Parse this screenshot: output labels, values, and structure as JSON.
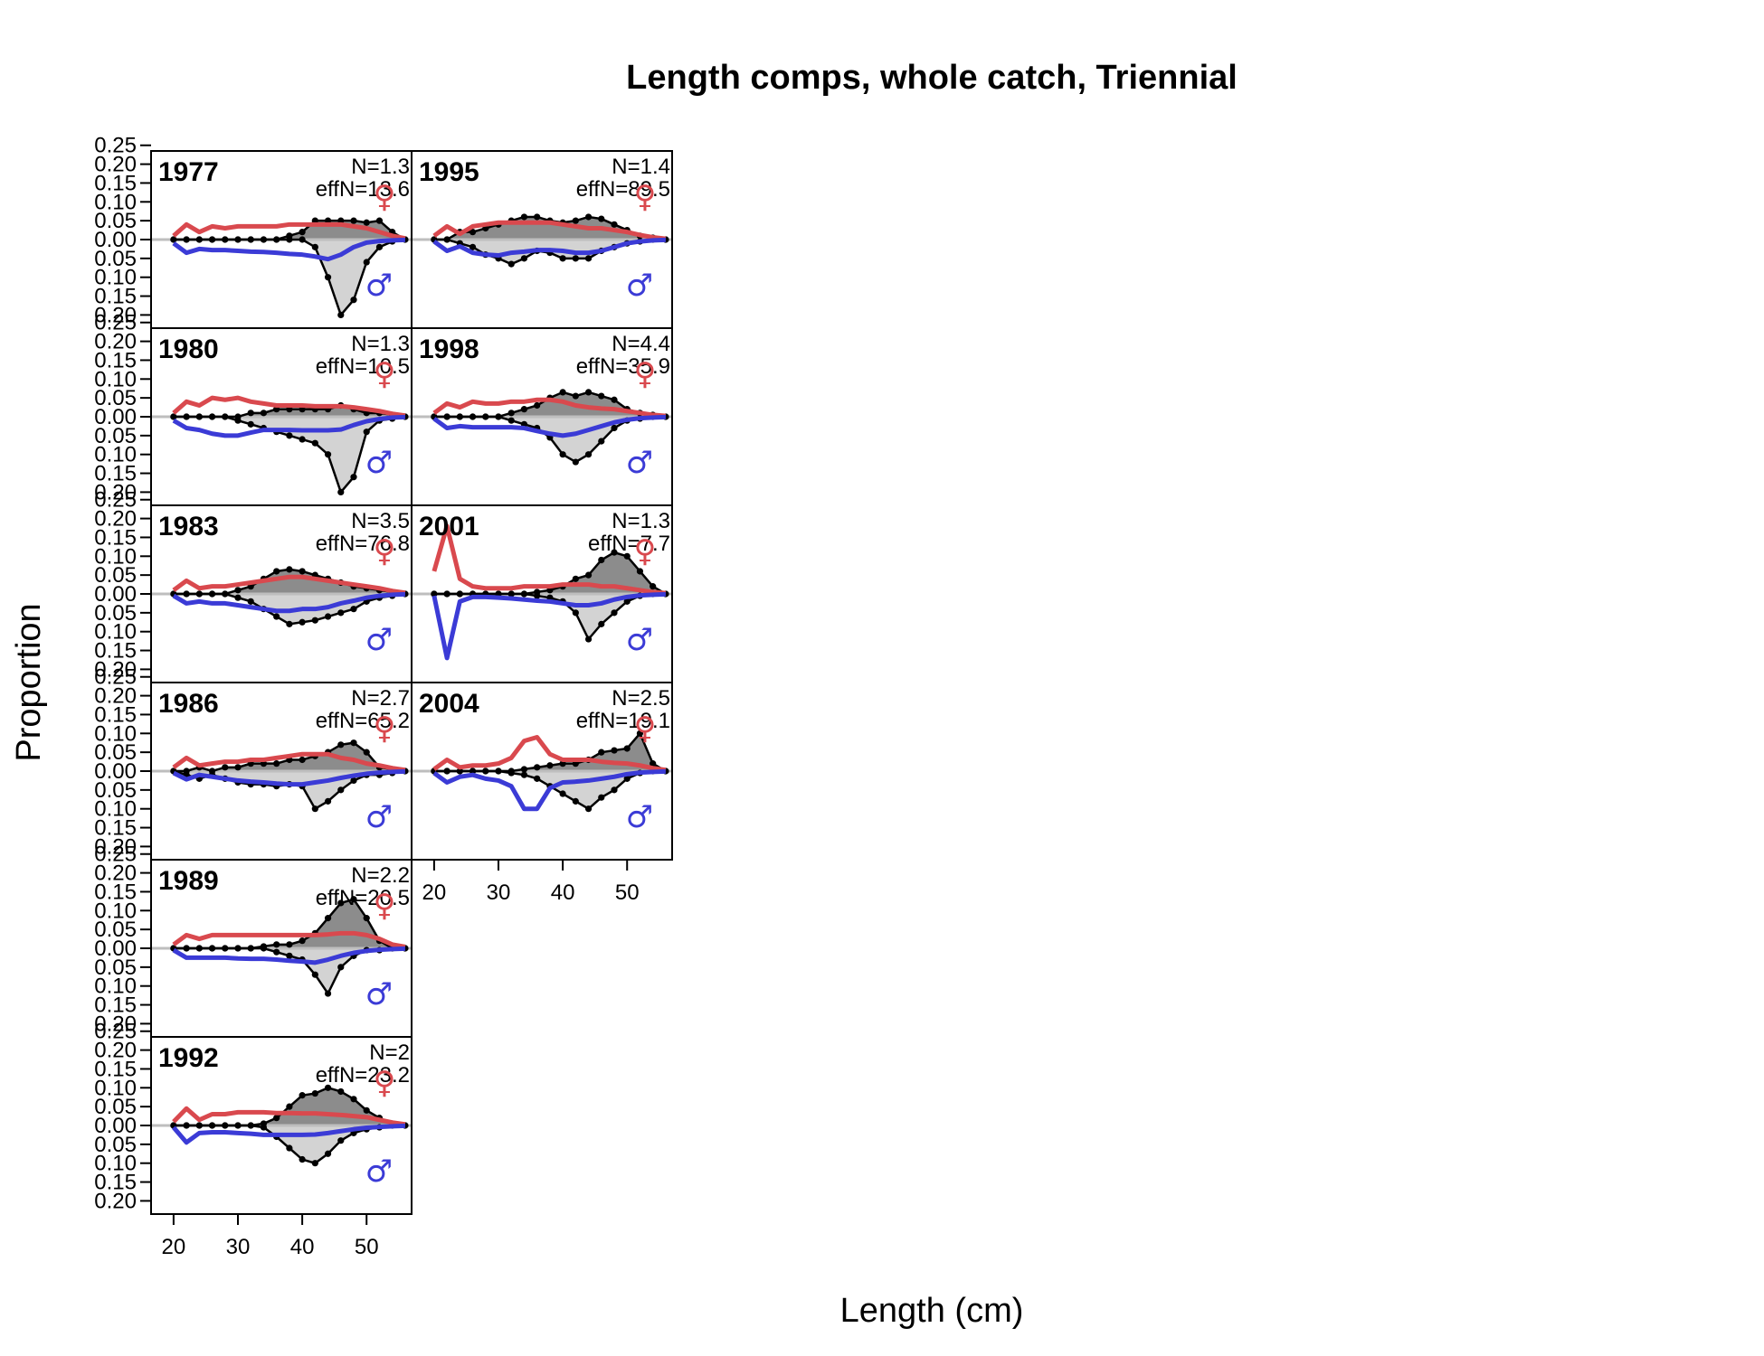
{
  "chart_data": {
    "type": "area",
    "title": "Length comps, whole catch, Triennial",
    "xlabel": "Length (cm)",
    "ylabel": "Proportion",
    "x": [
      20,
      22,
      24,
      26,
      28,
      30,
      32,
      34,
      36,
      38,
      40,
      42,
      44,
      46,
      48,
      50,
      52,
      54,
      56
    ],
    "xlim": [
      16.5,
      57
    ],
    "xticks": [
      20,
      30,
      40,
      50
    ],
    "ylim": [
      -0.235,
      0.235
    ],
    "yticks": [
      -0.2,
      -0.15,
      -0.1,
      -0.05,
      0.0,
      0.05,
      0.1,
      0.15,
      0.2,
      0.25
    ],
    "ytick_labels": [
      "0.20",
      "0.15",
      "0.10",
      "0.05",
      "0.00",
      "0.05",
      "0.10",
      "0.15",
      "0.20",
      "0.25"
    ],
    "female_symbol": "♀",
    "male_symbol": "♂",
    "colors": {
      "female": "#d9494e",
      "male": "#3b3bd6",
      "obs_fill_female": "#8c8c8c",
      "obs_fill_male": "#d3d3d3",
      "zero_line": "#bebebe"
    },
    "panels": [
      {
        "year": "1977",
        "n_label": "N=1.3",
        "effn_label": "effN=13.6",
        "obs_female": [
          0,
          0,
          0,
          0,
          0,
          0,
          0,
          0,
          0,
          0.01,
          0.02,
          0.05,
          0.05,
          0.05,
          0.05,
          0.045,
          0.05,
          0.02,
          0
        ],
        "obs_male": [
          0,
          0,
          0,
          0,
          0,
          0,
          0,
          0,
          0,
          0,
          0,
          0.02,
          0.1,
          0.2,
          0.16,
          0.06,
          0.02,
          0.005,
          0
        ],
        "exp_female": [
          0.01,
          0.04,
          0.02,
          0.035,
          0.03,
          0.035,
          0.035,
          0.035,
          0.035,
          0.04,
          0.04,
          0.04,
          0.04,
          0.04,
          0.035,
          0.03,
          0.02,
          0.01,
          0.003
        ],
        "exp_male": [
          0.01,
          0.035,
          0.025,
          0.028,
          0.028,
          0.03,
          0.032,
          0.033,
          0.035,
          0.038,
          0.04,
          0.045,
          0.052,
          0.04,
          0.02,
          0.008,
          0.004,
          0.002,
          0.001
        ]
      },
      {
        "year": "1980",
        "n_label": "N=1.3",
        "effn_label": "effN=10.5",
        "obs_female": [
          0,
          0,
          0,
          0,
          0,
          0,
          0.01,
          0.01,
          0.02,
          0.02,
          0.02,
          0.02,
          0.02,
          0.03,
          0.02,
          0.01,
          0.01,
          0.005,
          0
        ],
        "obs_male": [
          0,
          0,
          0,
          0,
          0,
          0.01,
          0.02,
          0.03,
          0.04,
          0.05,
          0.06,
          0.07,
          0.1,
          0.2,
          0.16,
          0.04,
          0.01,
          0.005,
          0
        ],
        "exp_female": [
          0.01,
          0.04,
          0.03,
          0.05,
          0.045,
          0.05,
          0.04,
          0.035,
          0.03,
          0.03,
          0.03,
          0.028,
          0.028,
          0.028,
          0.025,
          0.02,
          0.015,
          0.008,
          0.003
        ],
        "exp_male": [
          0.01,
          0.03,
          0.035,
          0.045,
          0.05,
          0.05,
          0.042,
          0.035,
          0.035,
          0.035,
          0.036,
          0.036,
          0.036,
          0.034,
          0.022,
          0.012,
          0.006,
          0.002,
          0.001
        ]
      },
      {
        "year": "1983",
        "n_label": "N=3.5",
        "effn_label": "effN=76.8",
        "obs_female": [
          0,
          0,
          0,
          0,
          0,
          0.01,
          0.02,
          0.04,
          0.06,
          0.065,
          0.06,
          0.05,
          0.04,
          0.03,
          0.02,
          0.015,
          0.01,
          0.005,
          0
        ],
        "obs_male": [
          0,
          0,
          0,
          0,
          0,
          0.01,
          0.02,
          0.04,
          0.06,
          0.08,
          0.075,
          0.07,
          0.06,
          0.05,
          0.04,
          0.02,
          0.01,
          0.005,
          0
        ],
        "exp_female": [
          0.01,
          0.035,
          0.015,
          0.02,
          0.02,
          0.025,
          0.03,
          0.035,
          0.04,
          0.045,
          0.045,
          0.04,
          0.035,
          0.03,
          0.025,
          0.02,
          0.015,
          0.008,
          0.003
        ],
        "exp_male": [
          0.005,
          0.025,
          0.02,
          0.025,
          0.025,
          0.03,
          0.035,
          0.04,
          0.045,
          0.045,
          0.04,
          0.04,
          0.035,
          0.025,
          0.018,
          0.01,
          0.005,
          0.002,
          0.001
        ]
      },
      {
        "year": "1986",
        "n_label": "N=2.7",
        "effn_label": "effN=65.2",
        "obs_female": [
          0,
          0,
          0.01,
          0,
          0.01,
          0.01,
          0.02,
          0.02,
          0.02,
          0.03,
          0.03,
          0.04,
          0.05,
          0.07,
          0.075,
          0.05,
          0.01,
          0.005,
          0
        ],
        "obs_male": [
          0,
          0.01,
          0.02,
          0.01,
          0.02,
          0.03,
          0.035,
          0.035,
          0.04,
          0.035,
          0.04,
          0.1,
          0.08,
          0.05,
          0.025,
          0.01,
          0.01,
          0.005,
          0
        ],
        "exp_female": [
          0.01,
          0.035,
          0.015,
          0.02,
          0.025,
          0.025,
          0.03,
          0.03,
          0.035,
          0.04,
          0.045,
          0.045,
          0.045,
          0.035,
          0.03,
          0.02,
          0.015,
          0.008,
          0.003
        ],
        "exp_male": [
          0.005,
          0.022,
          0.01,
          0.015,
          0.02,
          0.025,
          0.028,
          0.03,
          0.033,
          0.035,
          0.035,
          0.03,
          0.025,
          0.018,
          0.012,
          0.007,
          0.004,
          0.002,
          0.001
        ]
      },
      {
        "year": "1989",
        "n_label": "N=2.2",
        "effn_label": "effN=20.5",
        "obs_female": [
          0,
          0,
          0,
          0,
          0,
          0,
          0,
          0.005,
          0.01,
          0.01,
          0.02,
          0.04,
          0.08,
          0.12,
          0.13,
          0.08,
          0.02,
          0,
          0
        ],
        "obs_male": [
          0,
          0,
          0,
          0,
          0,
          0,
          0,
          0,
          0.01,
          0.02,
          0.03,
          0.07,
          0.12,
          0.05,
          0.02,
          0.005,
          0.005,
          0,
          0
        ],
        "exp_female": [
          0.01,
          0.035,
          0.025,
          0.035,
          0.035,
          0.035,
          0.035,
          0.035,
          0.035,
          0.035,
          0.035,
          0.035,
          0.037,
          0.04,
          0.04,
          0.035,
          0.025,
          0.01,
          0.004
        ],
        "exp_male": [
          0.005,
          0.025,
          0.025,
          0.025,
          0.025,
          0.027,
          0.028,
          0.028,
          0.03,
          0.033,
          0.035,
          0.038,
          0.03,
          0.02,
          0.012,
          0.007,
          0.004,
          0.002,
          0.001
        ]
      },
      {
        "year": "1992",
        "n_label": "N=2",
        "effn_label": "effN=23.2",
        "obs_female": [
          0,
          0,
          0,
          0,
          0,
          0,
          0,
          0.005,
          0.02,
          0.05,
          0.08,
          0.085,
          0.1,
          0.09,
          0.07,
          0.04,
          0.02,
          0.005,
          0
        ],
        "obs_male": [
          0,
          0,
          0,
          0,
          0,
          0,
          0,
          0.005,
          0.03,
          0.06,
          0.09,
          0.1,
          0.075,
          0.04,
          0.02,
          0.01,
          0.005,
          0,
          0
        ],
        "exp_female": [
          0.01,
          0.045,
          0.015,
          0.03,
          0.03,
          0.035,
          0.035,
          0.035,
          0.033,
          0.033,
          0.032,
          0.032,
          0.03,
          0.028,
          0.025,
          0.022,
          0.015,
          0.008,
          0.003
        ],
        "exp_male": [
          0.005,
          0.045,
          0.02,
          0.018,
          0.018,
          0.02,
          0.022,
          0.025,
          0.025,
          0.025,
          0.025,
          0.024,
          0.02,
          0.015,
          0.01,
          0.006,
          0.004,
          0.002,
          0.001
        ]
      },
      {
        "year": "1995",
        "n_label": "N=1.4",
        "effn_label": "effN=89.5",
        "obs_female": [
          0,
          0,
          0.02,
          0.02,
          0.03,
          0.04,
          0.05,
          0.06,
          0.06,
          0.05,
          0.045,
          0.05,
          0.06,
          0.055,
          0.04,
          0.025,
          0.01,
          0.005,
          0
        ],
        "obs_male": [
          0,
          0,
          0.01,
          0.02,
          0.04,
          0.05,
          0.065,
          0.05,
          0.03,
          0.035,
          0.05,
          0.05,
          0.05,
          0.03,
          0.02,
          0.01,
          0.005,
          0,
          0
        ],
        "exp_female": [
          0.01,
          0.035,
          0.015,
          0.035,
          0.04,
          0.045,
          0.045,
          0.045,
          0.045,
          0.045,
          0.04,
          0.035,
          0.03,
          0.03,
          0.025,
          0.02,
          0.012,
          0.006,
          0.002
        ],
        "exp_male": [
          0.005,
          0.03,
          0.018,
          0.035,
          0.04,
          0.042,
          0.035,
          0.032,
          0.028,
          0.028,
          0.03,
          0.035,
          0.035,
          0.03,
          0.02,
          0.01,
          0.005,
          0.002,
          0.001
        ]
      },
      {
        "year": "1998",
        "n_label": "N=4.4",
        "effn_label": "effN=35.9",
        "obs_female": [
          0,
          0,
          0,
          0,
          0,
          0,
          0.01,
          0.02,
          0.03,
          0.05,
          0.065,
          0.055,
          0.065,
          0.055,
          0.045,
          0.02,
          0.01,
          0.005,
          0
        ],
        "obs_male": [
          0,
          0,
          0,
          0,
          0,
          0,
          0.01,
          0.02,
          0.03,
          0.055,
          0.1,
          0.12,
          0.1,
          0.065,
          0.03,
          0.01,
          0.005,
          0,
          0
        ],
        "exp_female": [
          0.01,
          0.035,
          0.025,
          0.04,
          0.035,
          0.035,
          0.04,
          0.04,
          0.045,
          0.045,
          0.04,
          0.03,
          0.025,
          0.022,
          0.02,
          0.015,
          0.01,
          0.005,
          0.002
        ],
        "exp_male": [
          0.005,
          0.03,
          0.025,
          0.028,
          0.028,
          0.028,
          0.028,
          0.03,
          0.038,
          0.045,
          0.05,
          0.045,
          0.035,
          0.025,
          0.015,
          0.008,
          0.004,
          0.002,
          0.001
        ]
      },
      {
        "year": "2001",
        "n_label": "N=1.3",
        "effn_label": "effN=7.7",
        "obs_female": [
          0,
          0,
          0,
          0,
          0,
          0,
          0,
          0,
          0.005,
          0.01,
          0.02,
          0.04,
          0.05,
          0.09,
          0.11,
          0.1,
          0.06,
          0.02,
          0
        ],
        "obs_male": [
          0,
          0,
          0,
          0,
          0,
          0,
          0,
          0,
          0.005,
          0.01,
          0.02,
          0.05,
          0.12,
          0.08,
          0.05,
          0.02,
          0.005,
          0,
          0
        ],
        "exp_female": [
          0.06,
          0.18,
          0.04,
          0.02,
          0.015,
          0.015,
          0.015,
          0.02,
          0.02,
          0.02,
          0.025,
          0.025,
          0.025,
          0.02,
          0.02,
          0.015,
          0.01,
          0.005,
          0.002
        ],
        "exp_male": [
          0.005,
          0.17,
          0.02,
          0.008,
          0.008,
          0.01,
          0.012,
          0.015,
          0.018,
          0.02,
          0.025,
          0.03,
          0.03,
          0.025,
          0.015,
          0.008,
          0.004,
          0.002,
          0.001
        ]
      },
      {
        "year": "2004",
        "n_label": "N=2.5",
        "effn_label": "effN=19.1",
        "obs_female": [
          0,
          0,
          0,
          0,
          0,
          0,
          0,
          0.005,
          0.01,
          0.015,
          0.02,
          0.02,
          0.03,
          0.05,
          0.055,
          0.06,
          0.1,
          0.02,
          0
        ],
        "obs_male": [
          0,
          0,
          0,
          0,
          0,
          0,
          0.005,
          0.01,
          0.02,
          0.04,
          0.06,
          0.08,
          0.1,
          0.07,
          0.05,
          0.02,
          0.005,
          0,
          0
        ],
        "exp_female": [
          0.005,
          0.03,
          0.01,
          0.015,
          0.015,
          0.02,
          0.035,
          0.08,
          0.09,
          0.045,
          0.03,
          0.03,
          0.03,
          0.025,
          0.022,
          0.02,
          0.015,
          0.008,
          0.003
        ],
        "exp_male": [
          0.005,
          0.03,
          0.015,
          0.01,
          0.02,
          0.025,
          0.04,
          0.1,
          0.1,
          0.045,
          0.03,
          0.028,
          0.025,
          0.02,
          0.015,
          0.008,
          0.004,
          0.002,
          0.001
        ]
      }
    ]
  }
}
